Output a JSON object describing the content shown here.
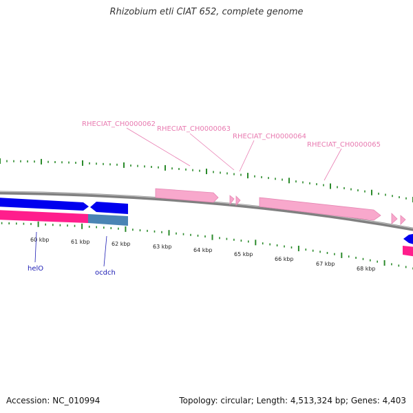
{
  "title": "Rhizobium etli CIAT 652, complete genome",
  "footer": {
    "accession": "Accession: NC_010994",
    "summary": "Topology: circular; Length: 4,513,324 bp; Genes: 4,403"
  },
  "colors": {
    "backbone": "#808080",
    "tick": "#2a8a2a",
    "forward_gene": "#0000ee",
    "reverse_gene": "#ff1e8c",
    "steelblue_gene": "#4a84b4",
    "locus_label": "#e87ab0",
    "locus_gene": "#f8a8cc",
    "gene_label": "#1a1ab4",
    "scale_label": "#222222"
  },
  "scale_labels": [
    "60 kbp",
    "61 kbp",
    "62 kbp",
    "63 kbp",
    "64 kbp",
    "65 kbp",
    "66 kbp",
    "67 kbp",
    "68 kbp"
  ],
  "locus_labels": [
    "RHECIAT_CH0000062",
    "RHECIAT_CH0000063",
    "RHECIAT_CH0000064",
    "RHECIAT_CH0000065"
  ],
  "gene_labels": [
    "helO",
    "ocdch"
  ]
}
